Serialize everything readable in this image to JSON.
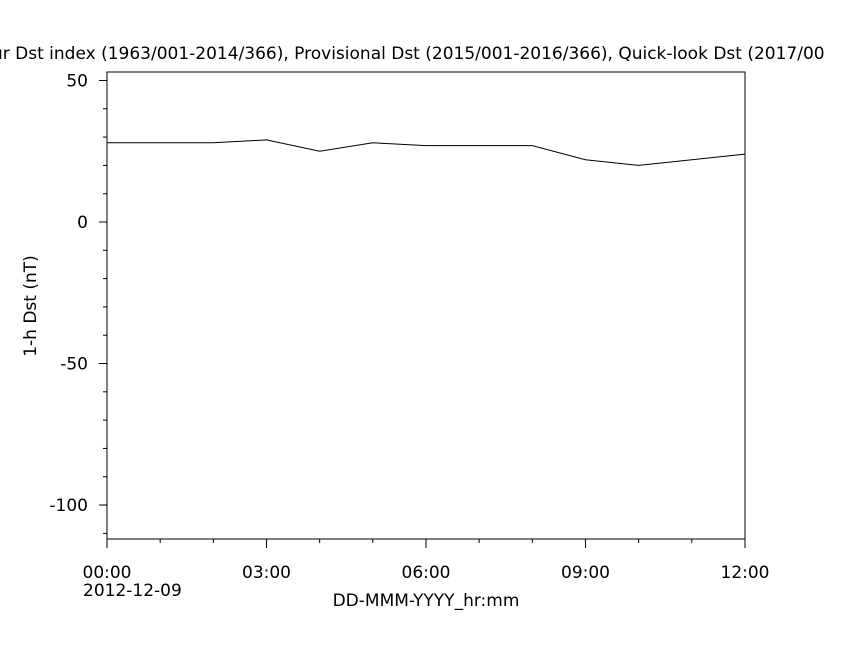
{
  "chart_data": {
    "type": "line",
    "title": "ur Dst index (1963/001-2014/366), Provisional Dst (2015/001-2016/366), Quick-look Dst (2017/00",
    "xlabel": "DD-MMM-YYYY_hr:mm",
    "ylabel": "1-h Dst (nT)",
    "x_date_label": "2012-12-09",
    "xlim": [
      0,
      12
    ],
    "ylim": [
      -112,
      53
    ],
    "x_ticks": [
      {
        "value": 0,
        "label": "00:00"
      },
      {
        "value": 3,
        "label": "03:00"
      },
      {
        "value": 6,
        "label": "06:00"
      },
      {
        "value": 9,
        "label": "09:00"
      },
      {
        "value": 12,
        "label": "12:00"
      }
    ],
    "y_ticks": [
      {
        "value": 50,
        "label": "50"
      },
      {
        "value": 0,
        "label": "0"
      },
      {
        "value": -50,
        "label": "-50"
      },
      {
        "value": -100,
        "label": "-100"
      }
    ],
    "x_minor_step": 1,
    "y_minor_step": 10,
    "grid": false,
    "series": [
      {
        "color": "#000000",
        "x": [
          0,
          1,
          2,
          3,
          4,
          5,
          6,
          7,
          8,
          9,
          10,
          11,
          12
        ],
        "values": [
          28,
          28,
          28,
          29,
          25,
          28,
          27,
          27,
          27,
          22,
          20,
          22,
          24
        ]
      }
    ]
  }
}
